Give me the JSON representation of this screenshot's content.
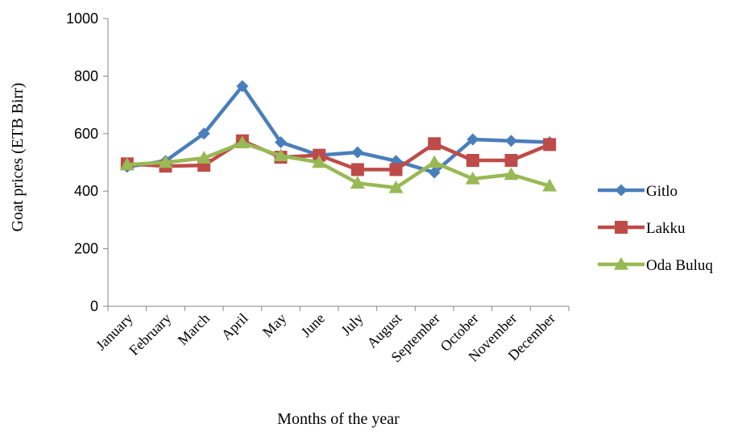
{
  "chart_data": {
    "type": "line",
    "title": "",
    "xlabel": "Months of the year",
    "ylabel": "Goat prices (ETB Birr)",
    "ylim": [
      0,
      1000
    ],
    "yticks": [
      0,
      200,
      400,
      600,
      800,
      1000
    ],
    "grid": false,
    "legend_position": "right",
    "categories": [
      "January",
      "February",
      "March",
      "April",
      "May",
      "June",
      "July",
      "August",
      "September",
      "October",
      "November",
      "December"
    ],
    "series": [
      {
        "name": "Gitlo",
        "color": "#4a7ebb",
        "marker": "diamond",
        "values": [
          485,
          505,
          600,
          765,
          570,
          525,
          535,
          505,
          465,
          580,
          575,
          570
        ]
      },
      {
        "name": "Lakku",
        "color": "#be4b48",
        "marker": "square",
        "values": [
          495,
          487,
          490,
          575,
          518,
          525,
          475,
          475,
          565,
          507,
          507,
          562
        ]
      },
      {
        "name": "Oda Buluq",
        "color": "#98b954",
        "marker": "triangle",
        "values": [
          492,
          500,
          515,
          568,
          523,
          500,
          428,
          412,
          500,
          443,
          458,
          418
        ]
      }
    ]
  }
}
